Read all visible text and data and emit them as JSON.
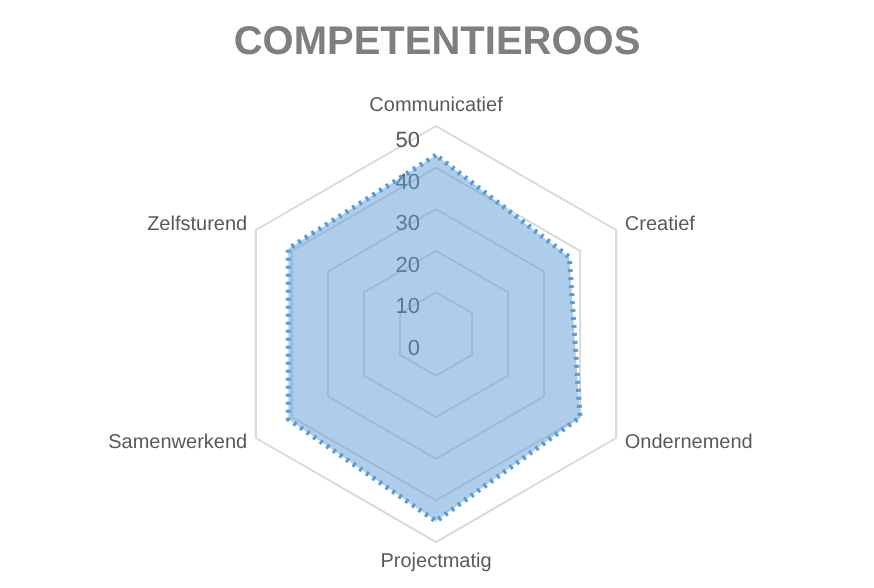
{
  "chart_data": {
    "type": "radar",
    "title": "COMPETENTIEROOS",
    "categories": [
      "Communicatief",
      "Creatief",
      "Ondernemend",
      "Projectmatig",
      "Samenwerkend",
      "Zelfsturend"
    ],
    "series": [
      {
        "color": "#5b9bd5",
        "values": [
          43,
          37,
          40,
          45,
          41,
          41
        ]
      }
    ],
    "ylim": [
      0,
      50
    ],
    "yticks": [
      0,
      10,
      20,
      30,
      40,
      50
    ],
    "grid": true,
    "line_style": "dotted",
    "marker": "none"
  }
}
